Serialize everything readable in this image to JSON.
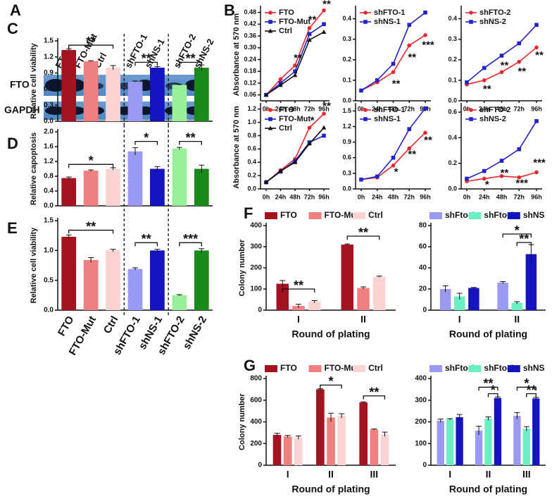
{
  "blot": {
    "panel": "A",
    "lanes": [
      "FTO",
      "FTO-Mut",
      "Ctrl",
      "shFTO-1",
      "shNS-1",
      "shFTO-2",
      "shNS-2"
    ],
    "rows": [
      "FTO",
      "GAPDH"
    ]
  },
  "chart_data": [
    {
      "type": "line",
      "panel": "B",
      "ylabel": "Absorbance at 570 nm",
      "categories": [
        "0h",
        "24h",
        "48h",
        "72h",
        "96h"
      ],
      "ylim": [
        0.03,
        0.5
      ],
      "yticks": [
        0.06,
        0.12,
        0.18,
        0.24,
        {
          "value": 0.3,
          "label": "0.30"
        },
        0.36,
        0.42,
        0.48
      ],
      "series": [
        {
          "name": "FTO",
          "color": "#e8262b",
          "marker": "circle",
          "values": [
            0.06,
            0.14,
            0.21,
            0.4,
            0.49
          ]
        },
        {
          "name": "FTO-Mut",
          "color": "#2222c8",
          "marker": "square",
          "values": [
            0.06,
            0.12,
            0.18,
            0.37,
            0.42
          ]
        },
        {
          "name": "Ctrl",
          "color": "#111111",
          "marker": "triangle",
          "values": [
            0.06,
            0.11,
            0.16,
            0.34,
            0.38
          ]
        }
      ],
      "annotations": [
        "**",
        "**",
        "**"
      ]
    },
    {
      "type": "line",
      "categories": [
        "0h",
        "24h",
        "48h",
        "72h",
        "96h"
      ],
      "ylim": [
        0,
        0.45
      ],
      "yticks": [
        {
          "value": 0,
          "label": "0.0"
        },
        0.1,
        0.2,
        0.3,
        0.4
      ],
      "series": [
        {
          "name": "shFTO-1",
          "color": "#e8262b",
          "marker": "circle",
          "values": [
            0.05,
            0.09,
            0.14,
            0.27,
            0.32
          ]
        },
        {
          "name": "shNS-1",
          "color": "#2222c8",
          "marker": "square",
          "values": [
            0.05,
            0.1,
            0.18,
            0.37,
            0.43
          ]
        }
      ],
      "annotations": [
        "**",
        "**",
        "***"
      ]
    },
    {
      "type": "line",
      "categories": [
        "0h",
        "24h",
        "48h",
        "72h",
        "96h"
      ],
      "ylim": [
        0,
        0.45
      ],
      "yticks": [
        {
          "value": 0,
          "label": "0.0"
        },
        0.1,
        0.2,
        0.3,
        0.4
      ],
      "series": [
        {
          "name": "shFTO-2",
          "color": "#e8262b",
          "marker": "circle",
          "values": [
            0.08,
            0.1,
            0.14,
            0.19,
            0.26
          ]
        },
        {
          "name": "shNS-2",
          "color": "#2222c8",
          "marker": "square",
          "values": [
            0.09,
            0.16,
            0.22,
            0.28,
            0.37
          ]
        }
      ],
      "annotations": [
        "**",
        "**",
        "**",
        "**"
      ]
    },
    {
      "type": "line",
      "ylabel": "Absorbance at 570 nm",
      "categories": [
        "0h",
        "24h",
        "48h",
        "72h",
        "96h"
      ],
      "ylim": [
        0,
        1.25
      ],
      "yticks": [
        {
          "value": 0,
          "label": "0.0"
        },
        0.2,
        0.4,
        0.6,
        0.8,
        {
          "value": 1,
          "label": "1.0"
        },
        1.2
      ],
      "series": [
        {
          "name": "FTO",
          "color": "#e8262b",
          "marker": "circle",
          "values": [
            0.1,
            0.28,
            0.45,
            0.92,
            1.13
          ]
        },
        {
          "name": "FTO-Mut",
          "color": "#2222c8",
          "marker": "square",
          "values": [
            0.1,
            0.26,
            0.42,
            0.7,
            0.8
          ]
        },
        {
          "name": "Ctrl",
          "color": "#111111",
          "marker": "triangle",
          "values": [
            0.1,
            0.27,
            0.4,
            0.68,
            0.92
          ]
        }
      ],
      "annotations": [
        "*",
        "**"
      ]
    },
    {
      "type": "line",
      "categories": [
        "0h",
        "24h",
        "48h",
        "72h",
        "96h"
      ],
      "ylim": [
        0,
        1.6
      ],
      "yticks": [
        {
          "value": 0,
          "label": "0.0"
        },
        0.3,
        0.6,
        0.9,
        1.2,
        1.5
      ],
      "series": [
        {
          "name": "shFTO-1",
          "color": "#e8262b",
          "marker": "circle",
          "values": [
            0.18,
            0.22,
            0.45,
            0.78,
            1.08
          ]
        },
        {
          "name": "shNS-1",
          "color": "#2222c8",
          "marker": "square",
          "values": [
            0.18,
            0.24,
            0.6,
            1.15,
            1.55
          ]
        }
      ],
      "annotations": [
        "*",
        "**",
        "**"
      ]
    },
    {
      "type": "line",
      "categories": [
        "0h",
        "24h",
        "48h",
        "72h",
        "96h"
      ],
      "ylim": [
        0,
        0.65
      ],
      "yticks": [
        {
          "value": 0,
          "label": "0.0"
        },
        0.2,
        0.4,
        0.6
      ],
      "series": [
        {
          "name": "shFTO-2",
          "color": "#e8262b",
          "marker": "circle",
          "values": [
            0.06,
            0.08,
            0.1,
            0.09,
            0.13
          ]
        },
        {
          "name": "shNS-2",
          "color": "#2222c8",
          "marker": "square",
          "values": [
            0.08,
            0.14,
            0.22,
            0.31,
            0.53
          ]
        }
      ],
      "annotations": [
        "*",
        "**",
        "***",
        "***"
      ]
    },
    {
      "type": "bar",
      "panel": "C",
      "ylabel": "Relative cell viability",
      "ylim": [
        0,
        1.5
      ],
      "yticks": [
        {
          "value": 0,
          "label": "0.0"
        },
        0.3,
        0.6,
        0.9,
        1.2,
        1.5
      ],
      "values": [
        1.33,
        1.12,
        1.0,
        0.74,
        1.0,
        0.68,
        1.0
      ],
      "errors": [
        0.02,
        0.01,
        0.04,
        0.01,
        0.02,
        0.01,
        0.05
      ],
      "colors": [
        "#a51220",
        "#f08080",
        "#fcd3d3",
        "#9a9af2",
        "#1414c0",
        "#98f098",
        "#1a8a1a"
      ],
      "annotations": [
        "**",
        "**",
        "**"
      ]
    },
    {
      "type": "bar",
      "panel": "D",
      "ylabel": "Relative capoptosis",
      "ylim": [
        0,
        2
      ],
      "yticks": [
        {
          "value": 0,
          "label": "0.0"
        },
        0.4,
        0.8,
        1.2,
        1.6,
        {
          "value": 2,
          "label": "2.0"
        }
      ],
      "values": [
        0.75,
        0.95,
        1.0,
        1.47,
        1.0,
        1.55,
        1.0
      ],
      "errors": [
        0.03,
        0.02,
        0.03,
        0.1,
        0.06,
        0.03,
        0.1
      ],
      "colors": [
        "#a51220",
        "#f08080",
        "#fcd3d3",
        "#9a9af2",
        "#1414c0",
        "#98f098",
        "#1a8a1a"
      ],
      "annotations": [
        "*",
        "*",
        "**"
      ]
    },
    {
      "type": "bar",
      "panel": "E",
      "ylabel": "Relative cell viability",
      "ylim": [
        0,
        1.5
      ],
      "yticks": [
        {
          "value": 0,
          "label": "0.0"
        },
        0.5,
        {
          "value": 1,
          "label": "1.0"
        },
        1.5
      ],
      "categories": [
        "FTO",
        "FTO-Mut",
        "Ctrl",
        "shFTO-1",
        "shNS-1",
        "shFTO-2",
        "shNS-2"
      ],
      "values": [
        1.23,
        0.84,
        1.0,
        0.69,
        1.0,
        0.25,
        1.0
      ],
      "errors": [
        0.03,
        0.04,
        0.02,
        0.02,
        0.02,
        0.01,
        0.03
      ],
      "colors": [
        "#a51220",
        "#f08080",
        "#fcd3d3",
        "#9a9af2",
        "#1414c0",
        "#98f098",
        "#1a8a1a"
      ],
      "annotations": [
        "**",
        "**",
        "***"
      ]
    },
    {
      "type": "grouped",
      "panel": "F",
      "ylabel": "Colony number",
      "xlabel": "Round of plating",
      "categories": [
        "I",
        "II"
      ],
      "ylim": [
        0,
        400
      ],
      "yticks": [
        0,
        100,
        200,
        300,
        400
      ],
      "series": [
        {
          "name": "FTO",
          "color": "#a51220",
          "values": [
            125,
            310
          ],
          "errors": [
            15,
            3
          ]
        },
        {
          "name": "FTO-Mut",
          "color": "#f08080",
          "values": [
            20,
            105
          ],
          "errors": [
            8,
            5
          ]
        },
        {
          "name": "Ctrl",
          "color": "#fcd3d3",
          "values": [
            40,
            158
          ],
          "errors": [
            5,
            3
          ]
        }
      ],
      "annotations": [
        "**",
        "**"
      ]
    },
    {
      "type": "grouped",
      "xlabel": "Round of plating",
      "categories": [
        "I",
        "II"
      ],
      "ylim": [
        0,
        80
      ],
      "yticks": [
        0,
        20,
        40,
        60,
        80
      ],
      "series": [
        {
          "name": "shFto-1",
          "color": "#9a9af2",
          "values": [
            20,
            26
          ],
          "errors": [
            3,
            1
          ]
        },
        {
          "name": "shFto-2",
          "color": "#6af0c0",
          "values": [
            13,
            7
          ],
          "errors": [
            3,
            1
          ]
        },
        {
          "name": "shNS",
          "color": "#1414c0",
          "values": [
            21,
            53
          ],
          "errors": [
            0.5,
            9
          ]
        }
      ],
      "annotations": [
        "*",
        "**"
      ]
    },
    {
      "type": "grouped",
      "panel": "G",
      "ylabel": "Colony number",
      "xlabel": "Round of plating",
      "categories": [
        "I",
        "II",
        "III"
      ],
      "ylim": [
        0,
        800
      ],
      "yticks": [
        0,
        200,
        400,
        600,
        800
      ],
      "series": [
        {
          "name": "FTO",
          "color": "#a51220",
          "values": [
            280,
            700,
            580
          ],
          "errors": [
            15,
            5,
            5
          ]
        },
        {
          "name": "FTO-Mut",
          "color": "#f08080",
          "values": [
            265,
            440,
            330
          ],
          "errors": [
            10,
            40,
            5
          ]
        },
        {
          "name": "Ctrl",
          "color": "#fcd3d3",
          "values": [
            255,
            455,
            285
          ],
          "errors": [
            15,
            20,
            20
          ]
        }
      ],
      "annotations": [
        "*",
        "**"
      ]
    },
    {
      "type": "grouped",
      "xlabel": "Round of plating",
      "categories": [
        "I",
        "II",
        "III"
      ],
      "ylim": [
        0,
        400
      ],
      "yticks": [
        0,
        100,
        200,
        300,
        400
      ],
      "series": [
        {
          "name": "shFto-1",
          "color": "#9a9af2",
          "values": [
            205,
            160,
            228
          ],
          "errors": [
            8,
            20,
            15
          ]
        },
        {
          "name": "shFto-2",
          "color": "#6af0c0",
          "values": [
            212,
            215,
            168
          ],
          "errors": [
            3,
            8,
            10
          ]
        },
        {
          "name": "shNS",
          "color": "#1414c0",
          "values": [
            222,
            310,
            308
          ],
          "errors": [
            12,
            5,
            5
          ]
        }
      ],
      "annotations": [
        "**",
        "*",
        "*",
        "**"
      ]
    }
  ]
}
